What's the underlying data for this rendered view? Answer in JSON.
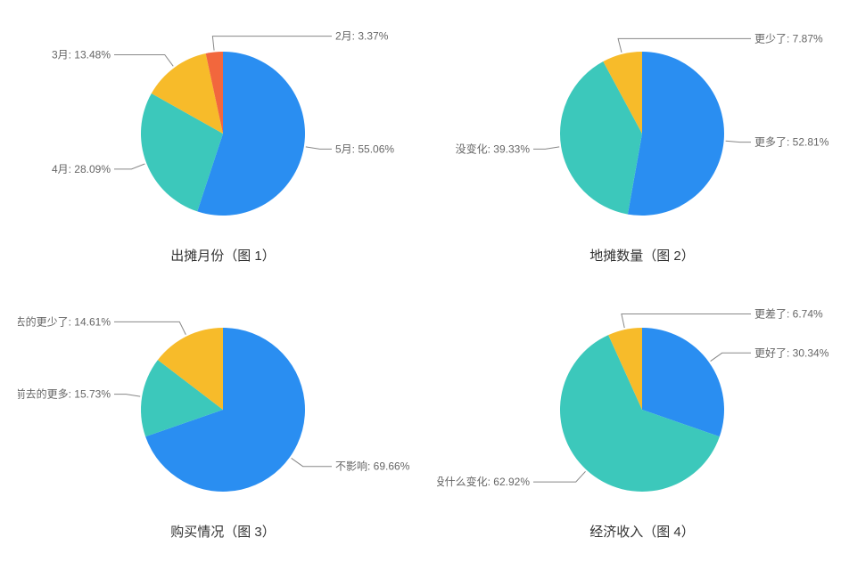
{
  "layout": {
    "rows": 2,
    "cols": 2,
    "background_color": "#ffffff",
    "label_fontsize": 12,
    "label_color": "#666666",
    "caption_fontsize": 15,
    "caption_color": "#333333"
  },
  "palette": {
    "blue": "#2a8ef1",
    "teal": "#3cc8bb",
    "yellow": "#f7bb2a",
    "orange": "#f2673d"
  },
  "charts": [
    {
      "id": "chart1",
      "type": "pie",
      "caption": "出摊月份（图 1）",
      "slices": [
        {
          "label": "5月",
          "value": 55.06,
          "color": "#2a8ef1",
          "label_side": "right"
        },
        {
          "label": "4月",
          "value": 28.09,
          "color": "#3cc8bb",
          "label_side": "left"
        },
        {
          "label": "3月",
          "value": 13.48,
          "color": "#f7bb2a",
          "label_side": "left"
        },
        {
          "label": "2月",
          "value": 3.37,
          "color": "#f2673d",
          "label_side": "right"
        }
      ]
    },
    {
      "id": "chart2",
      "type": "pie",
      "caption": "地摊数量（图 2）",
      "slices": [
        {
          "label": "更多了",
          "value": 52.81,
          "color": "#2a8ef1",
          "label_side": "right"
        },
        {
          "label": "没变化",
          "value": 39.33,
          "color": "#3cc8bb",
          "label_side": "left"
        },
        {
          "label": "更少了",
          "value": 7.87,
          "color": "#f7bb2a",
          "label_side": "right"
        }
      ]
    },
    {
      "id": "chart3",
      "type": "pie",
      "caption": "购买情况（图 3）",
      "slices": [
        {
          "label": "不影响",
          "value": 69.66,
          "color": "#2a8ef1",
          "label_side": "right"
        },
        {
          "label": "相比以前去的更多",
          "value": 15.73,
          "color": "#3cc8bb",
          "label_side": "left"
        },
        {
          "label": "相比以前去的更少了",
          "value": 14.61,
          "color": "#f7bb2a",
          "label_side": "left"
        }
      ]
    },
    {
      "id": "chart4",
      "type": "pie",
      "caption": "经济收入（图 4）",
      "slices": [
        {
          "label": "更好了",
          "value": 30.34,
          "color": "#2a8ef1",
          "label_side": "right"
        },
        {
          "label": "没什么变化",
          "value": 62.92,
          "color": "#3cc8bb",
          "label_side": "left"
        },
        {
          "label": "更差了",
          "value": 6.74,
          "color": "#f7bb2a",
          "label_side": "right"
        }
      ]
    }
  ]
}
